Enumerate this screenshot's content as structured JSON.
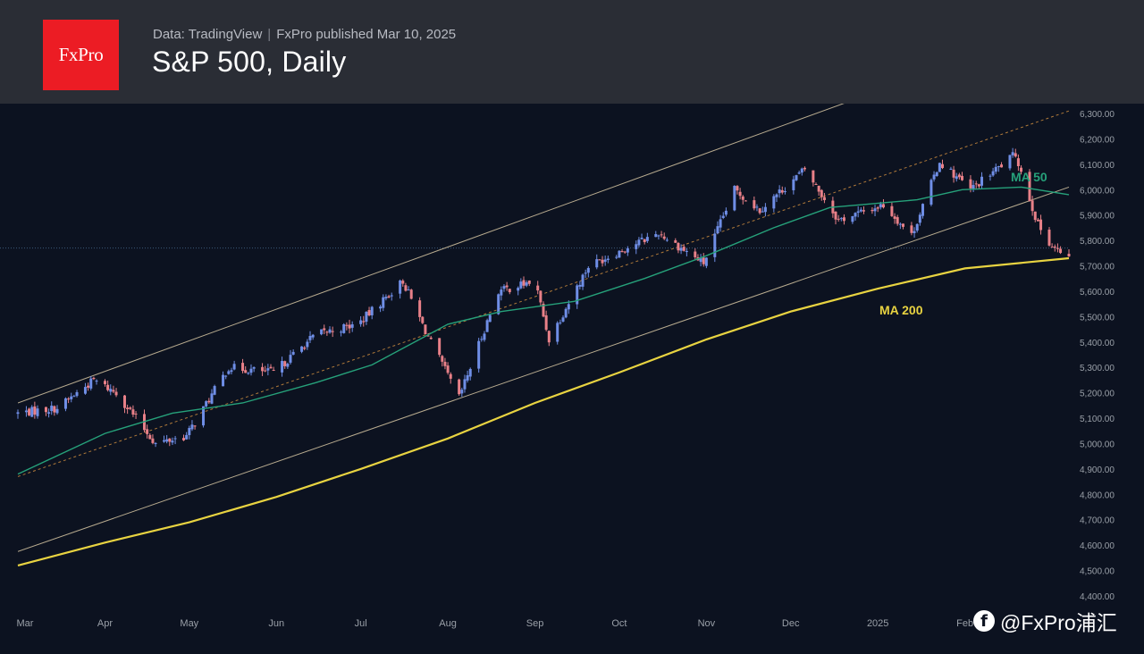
{
  "header": {
    "logo_text": "FxPro",
    "source": "Data: TradingView",
    "published": "FxPro published Mar 10, 2025",
    "title": "S&P 500, Daily"
  },
  "watermark": {
    "icon": "facebook-icon",
    "text": "@FxPro浦汇"
  },
  "colors": {
    "background": "#0c1220",
    "header": "#2a2d35",
    "logo": "#ec1c24",
    "up_candle": "#6f8ee6",
    "down_candle": "#e88088",
    "ma50": "#26a17a",
    "ma200": "#e8d341",
    "channel": "#b8ab8f",
    "mid_channel": "#b07a3a",
    "last_price_line": "#3a5a78",
    "axis_text": "#9aa0a8"
  },
  "chart_data": {
    "type": "candlestick",
    "title": "S&P 500, Daily",
    "x_start": "2024-03-01",
    "x_end": "2025-03-10",
    "ylim": [
      4400,
      6300
    ],
    "grid": false,
    "yticks": [
      "6,300.00",
      "6,200.00",
      "6,100.00",
      "6,000.00",
      "5,900.00",
      "5,800.00",
      "5,700.00",
      "5,600.00",
      "5,500.00",
      "5,400.00",
      "5,300.00",
      "5,200.00",
      "5,100.00",
      "5,000.00",
      "4,900.00",
      "4,800.00",
      "4,700.00",
      "4,600.00",
      "4,500.00",
      "4,400.00"
    ],
    "xticks": [
      {
        "date": "2024-03-01",
        "label": "Mar"
      },
      {
        "date": "2024-04-01",
        "label": "Apr"
      },
      {
        "date": "2024-05-01",
        "label": "May"
      },
      {
        "date": "2024-06-01",
        "label": "Jun"
      },
      {
        "date": "2024-07-01",
        "label": "Jul"
      },
      {
        "date": "2024-08-01",
        "label": "Aug"
      },
      {
        "date": "2024-09-01",
        "label": "Sep"
      },
      {
        "date": "2024-10-01",
        "label": "Oct"
      },
      {
        "date": "2024-11-01",
        "label": "Nov"
      },
      {
        "date": "2024-12-01",
        "label": "Dec"
      },
      {
        "date": "2025-01-01",
        "label": "2025"
      },
      {
        "date": "2025-02-01",
        "label": "Feb"
      }
    ],
    "price_path": [
      [
        "2024-03-01",
        5120
      ],
      [
        "2024-03-15",
        5140
      ],
      [
        "2024-03-28",
        5250
      ],
      [
        "2024-04-05",
        5200
      ],
      [
        "2024-04-19",
        5000
      ],
      [
        "2024-04-30",
        5030
      ],
      [
        "2024-05-15",
        5300
      ],
      [
        "2024-05-31",
        5280
      ],
      [
        "2024-06-15",
        5430
      ],
      [
        "2024-06-30",
        5470
      ],
      [
        "2024-07-16",
        5640
      ],
      [
        "2024-07-25",
        5420
      ],
      [
        "2024-08-05",
        5180
      ],
      [
        "2024-08-19",
        5600
      ],
      [
        "2024-09-01",
        5640
      ],
      [
        "2024-09-06",
        5410
      ],
      [
        "2024-09-20",
        5700
      ],
      [
        "2024-10-15",
        5830
      ],
      [
        "2024-10-31",
        5710
      ],
      [
        "2024-11-11",
        6000
      ],
      [
        "2024-11-20",
        5920
      ],
      [
        "2024-12-06",
        6080
      ],
      [
        "2024-12-18",
        5880
      ],
      [
        "2025-01-03",
        5940
      ],
      [
        "2025-01-13",
        5820
      ],
      [
        "2025-01-23",
        6110
      ],
      [
        "2025-02-03",
        6000
      ],
      [
        "2025-02-19",
        6140
      ],
      [
        "2025-02-27",
        5860
      ],
      [
        "2025-03-04",
        5780
      ],
      [
        "2025-03-10",
        5720
      ]
    ],
    "series": [
      {
        "name": "MA 50",
        "label": "MA 50",
        "points": [
          [
            "2024-03-01",
            4880
          ],
          [
            "2024-04-01",
            5040
          ],
          [
            "2024-04-25",
            5120
          ],
          [
            "2024-05-20",
            5160
          ],
          [
            "2024-06-15",
            5240
          ],
          [
            "2024-07-05",
            5310
          ],
          [
            "2024-08-01",
            5470
          ],
          [
            "2024-08-20",
            5520
          ],
          [
            "2024-09-15",
            5560
          ],
          [
            "2024-10-10",
            5650
          ],
          [
            "2024-11-01",
            5740
          ],
          [
            "2024-11-25",
            5850
          ],
          [
            "2024-12-15",
            5930
          ],
          [
            "2025-01-15",
            5960
          ],
          [
            "2025-01-31",
            6000
          ],
          [
            "2025-02-21",
            6010
          ],
          [
            "2025-03-10",
            5980
          ]
        ]
      },
      {
        "name": "MA 200",
        "label": "MA 200",
        "points": [
          [
            "2024-03-01",
            4520
          ],
          [
            "2024-04-01",
            4610
          ],
          [
            "2024-05-01",
            4690
          ],
          [
            "2024-06-01",
            4790
          ],
          [
            "2024-07-01",
            4900
          ],
          [
            "2024-08-01",
            5020
          ],
          [
            "2024-09-01",
            5160
          ],
          [
            "2024-10-01",
            5280
          ],
          [
            "2024-11-01",
            5410
          ],
          [
            "2024-12-01",
            5520
          ],
          [
            "2025-01-01",
            5610
          ],
          [
            "2025-02-01",
            5690
          ],
          [
            "2025-03-10",
            5730
          ]
        ]
      },
      {
        "name": "Channel upper",
        "points": [
          [
            "2024-03-01",
            5160
          ],
          [
            "2024-12-10",
            6300
          ]
        ]
      },
      {
        "name": "Channel mid",
        "points": [
          [
            "2024-03-01",
            4870
          ],
          [
            "2025-03-10",
            6310
          ]
        ]
      },
      {
        "name": "Channel lower",
        "points": [
          [
            "2024-03-01",
            4575
          ],
          [
            "2025-03-10",
            6010
          ]
        ]
      }
    ],
    "last_price": 5770
  }
}
